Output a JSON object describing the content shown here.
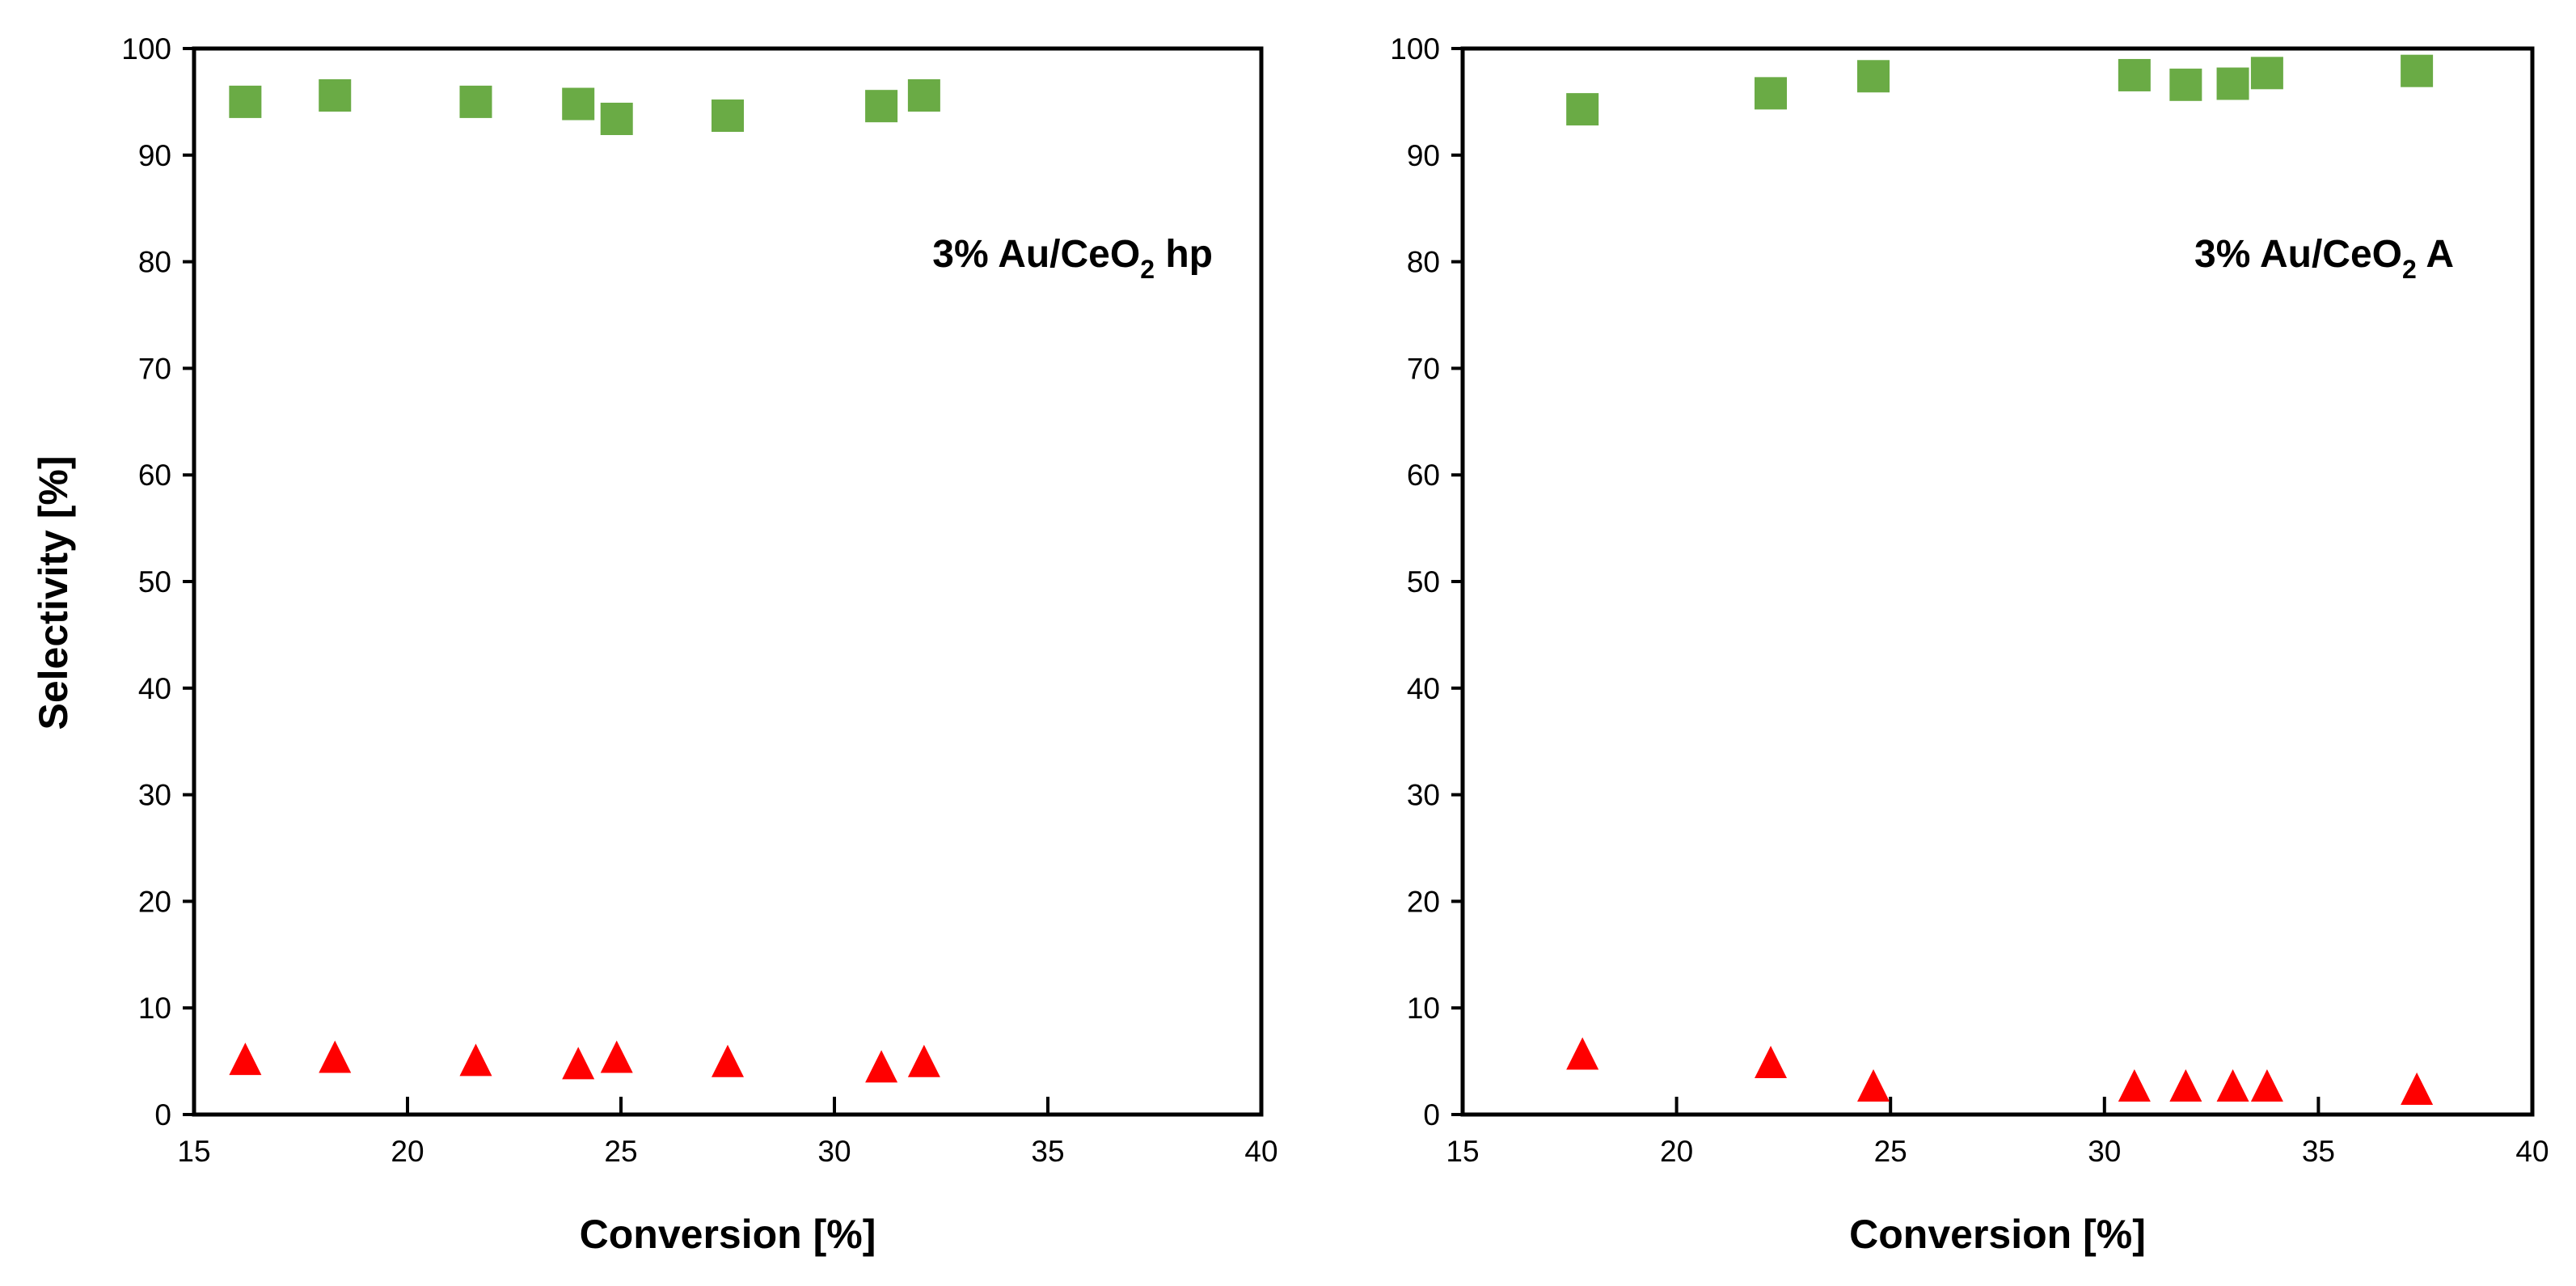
{
  "y_axis_title": "Selectivity [%]",
  "chart_data": [
    {
      "type": "scatter",
      "panel_label": {
        "text": "3% Au/CeO",
        "subscript": "2",
        "suffix": " hp"
      },
      "xlabel": "Conversion [%]",
      "ylabel": "Selectivity [%]",
      "xlim": [
        15,
        40
      ],
      "ylim": [
        0,
        100
      ],
      "xticks": [
        "15",
        "20",
        "25",
        "30",
        "35",
        "40"
      ],
      "yticks": [
        "0",
        "10",
        "20",
        "30",
        "40",
        "50",
        "60",
        "70",
        "80",
        "90",
        "100"
      ],
      "grid": false,
      "series": [
        {
          "name": "green-squares",
          "marker": "square",
          "color": "#6aab45",
          "x": [
            16.2,
            18.3,
            21.6,
            24.0,
            24.9,
            27.5,
            31.1,
            32.1
          ],
          "y": [
            95.0,
            95.6,
            95.0,
            94.8,
            93.4,
            93.7,
            94.6,
            95.6
          ]
        },
        {
          "name": "red-triangles",
          "marker": "triangle",
          "color": "#ff0000",
          "x": [
            16.2,
            18.3,
            21.6,
            24.0,
            24.9,
            27.5,
            31.1,
            32.1
          ],
          "y": [
            5.0,
            5.2,
            4.9,
            4.6,
            5.2,
            4.8,
            4.3,
            4.8
          ]
        }
      ]
    },
    {
      "type": "scatter",
      "panel_label": {
        "text": "3% Au/CeO",
        "subscript": "2",
        "suffix": " A"
      },
      "xlabel": "Conversion [%]",
      "ylabel": "Selectivity [%]",
      "xlim": [
        15,
        40
      ],
      "ylim": [
        0,
        100
      ],
      "xticks": [
        "15",
        "20",
        "25",
        "30",
        "35",
        "40"
      ],
      "yticks": [
        "0",
        "10",
        "20",
        "30",
        "40",
        "50",
        "60",
        "70",
        "80",
        "90",
        "100"
      ],
      "grid": false,
      "series": [
        {
          "name": "green-squares",
          "marker": "square",
          "color": "#6aab45",
          "x": [
            17.8,
            22.2,
            24.6,
            30.7,
            31.9,
            33.0,
            33.8,
            37.3
          ],
          "y": [
            94.3,
            95.8,
            97.4,
            97.5,
            96.6,
            96.7,
            97.7,
            97.9
          ]
        },
        {
          "name": "red-triangles",
          "marker": "triangle",
          "color": "#ff0000",
          "x": [
            17.8,
            22.2,
            24.6,
            30.7,
            31.9,
            33.0,
            33.8,
            37.3
          ],
          "y": [
            5.5,
            4.7,
            2.5,
            2.5,
            2.5,
            2.5,
            2.5,
            2.2
          ]
        }
      ]
    }
  ]
}
